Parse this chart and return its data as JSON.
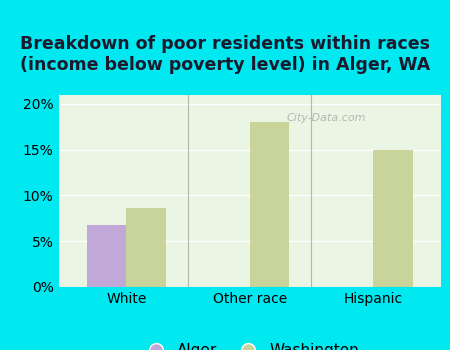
{
  "title": "Breakdown of poor residents within races\n(income below poverty level) in Alger, WA",
  "categories": [
    "White",
    "Other race",
    "Hispanic"
  ],
  "alger_values": [
    6.8,
    null,
    null
  ],
  "washington_values": [
    8.6,
    18.0,
    15.0
  ],
  "alger_color": "#c2a8d8",
  "washington_color": "#c8d49a",
  "background_color": "#00e8f0",
  "plot_bg_color": "#eaf5e4",
  "ylim": [
    0,
    21
  ],
  "yticks": [
    0,
    5,
    10,
    15,
    20
  ],
  "yticklabels": [
    "0%",
    "5%",
    "10%",
    "15%",
    "20%"
  ],
  "bar_width": 0.32,
  "title_fontsize": 12.5,
  "tick_fontsize": 10,
  "legend_fontsize": 11,
  "watermark": "City-Data.com"
}
